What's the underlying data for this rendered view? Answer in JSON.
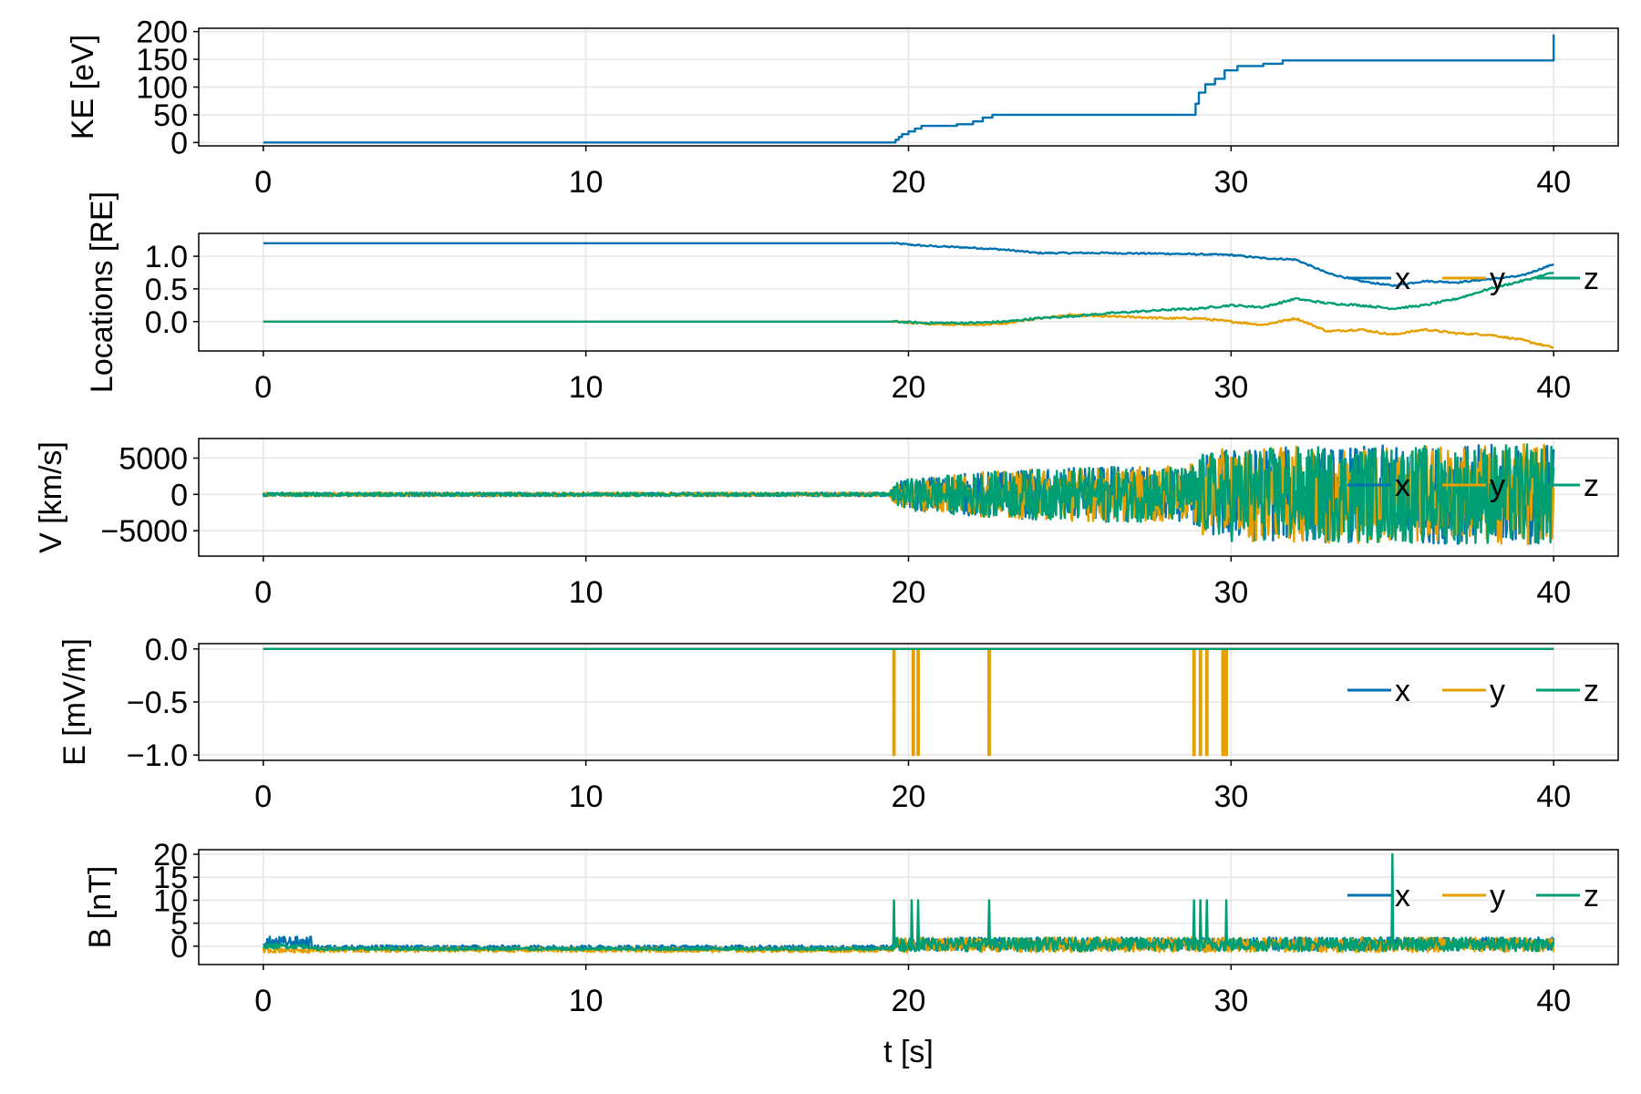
{
  "colors": {
    "x": "#0072b2",
    "y": "#e69f00",
    "z": "#009e73",
    "grid": "#e6e6e6",
    "frame": "#000000"
  },
  "chart_data": [
    {
      "type": "line",
      "ylabel": "KE [eV]",
      "xlabel": "",
      "xlim": [
        -2,
        42
      ],
      "ylim": [
        -6,
        206
      ],
      "xticks": [
        0,
        10,
        20,
        30,
        40
      ],
      "yticks": [
        0,
        50,
        100,
        150,
        200
      ],
      "ytick_labels": [
        "0",
        "50",
        "100",
        "150",
        "200"
      ],
      "grid": true,
      "legend": null,
      "series": [
        {
          "color": "#0072b2",
          "step": true,
          "x": [
            0,
            19.5,
            19.6,
            19.7,
            19.8,
            20.0,
            20.2,
            20.4,
            21.5,
            22.0,
            22.3,
            22.6,
            28.8,
            28.9,
            29.0,
            29.2,
            29.5,
            29.8,
            30.2,
            31.0,
            31.6,
            40.0,
            40.0
          ],
          "y": [
            0,
            0,
            5,
            10,
            15,
            20,
            25,
            30,
            33,
            38,
            45,
            50,
            50,
            70,
            90,
            105,
            115,
            130,
            138,
            142,
            148,
            148,
            195
          ]
        }
      ]
    },
    {
      "type": "line",
      "ylabel": "Locations [RE]",
      "xlabel": "",
      "xlim": [
        -2,
        42
      ],
      "ylim": [
        -0.45,
        1.35
      ],
      "xticks": [
        0,
        10,
        20,
        30,
        40
      ],
      "yticks": [
        0,
        0.5,
        1.0
      ],
      "ytick_labels": [
        "0.0",
        "0.5",
        "1.0"
      ],
      "grid": true,
      "legend": "right",
      "series": [
        {
          "name": "x",
          "color": "#0072b2",
          "noise": 0.012,
          "x": [
            0,
            19.5,
            20.5,
            22,
            23,
            24,
            26,
            28,
            30,
            31,
            32,
            33,
            34,
            35,
            36,
            37,
            38,
            39,
            40
          ],
          "y": [
            1.2,
            1.2,
            1.16,
            1.13,
            1.1,
            1.05,
            1.05,
            1.04,
            1.02,
            0.97,
            0.95,
            0.74,
            0.62,
            0.55,
            0.62,
            0.6,
            0.65,
            0.7,
            0.88
          ]
        },
        {
          "name": "y",
          "color": "#e69f00",
          "noise": 0.015,
          "x": [
            0,
            19.5,
            20.5,
            22,
            23,
            24,
            25,
            26,
            27,
            28,
            29,
            30,
            31,
            32,
            33,
            34,
            35,
            36,
            37,
            38,
            39,
            40
          ],
          "y": [
            0,
            0,
            -0.03,
            -0.05,
            -0.03,
            0.05,
            0.1,
            0.08,
            0.07,
            0.05,
            0.05,
            0.0,
            -0.05,
            0.05,
            -0.15,
            -0.12,
            -0.2,
            -0.12,
            -0.18,
            -0.2,
            -0.28,
            -0.4
          ]
        },
        {
          "name": "z",
          "color": "#009e73",
          "noise": 0.015,
          "x": [
            0,
            19.5,
            20.5,
            22,
            23,
            24,
            25,
            26,
            28,
            29,
            30,
            31,
            32,
            33,
            34,
            35,
            36,
            37,
            38,
            39,
            40
          ],
          "y": [
            0,
            0,
            -0.02,
            -0.02,
            -0.0,
            0.05,
            0.08,
            0.12,
            0.18,
            0.2,
            0.25,
            0.22,
            0.35,
            0.28,
            0.25,
            0.2,
            0.25,
            0.35,
            0.5,
            0.62,
            0.75
          ]
        }
      ]
    },
    {
      "type": "line",
      "ylabel": "V [km/s]",
      "xlabel": "",
      "xlim": [
        -2,
        42
      ],
      "ylim": [
        -8500,
        7700
      ],
      "xticks": [
        0,
        10,
        20,
        30,
        40
      ],
      "yticks": [
        -5000,
        0,
        5000
      ],
      "ytick_labels": [
        "−5000",
        "0",
        "5000"
      ],
      "grid": true,
      "legend": "right",
      "amplitude_envelope": {
        "x": [
          0,
          19.4,
          19.6,
          20.0,
          22.0,
          24.0,
          26.0,
          28.7,
          29.0,
          30.0,
          40.0
        ],
        "a": [
          250,
          250,
          1500,
          2200,
          3000,
          3500,
          3800,
          3900,
          5500,
          6500,
          7000
        ]
      },
      "series": [
        {
          "name": "x",
          "color": "#0072b2"
        },
        {
          "name": "y",
          "color": "#e69f00"
        },
        {
          "name": "z",
          "color": "#009e73"
        }
      ]
    },
    {
      "type": "line",
      "ylabel": "E [mV/m]",
      "xlabel": "",
      "xlim": [
        -2,
        42
      ],
      "ylim": [
        -1.05,
        0.05
      ],
      "xticks": [
        0,
        10,
        20,
        30,
        40
      ],
      "yticks": [
        -1.0,
        -0.5,
        0.0
      ],
      "ytick_labels": [
        "−1.0",
        "−0.5",
        "0.0"
      ],
      "grid": true,
      "legend": "right",
      "series": [
        {
          "name": "x",
          "color": "#0072b2",
          "x": [
            0,
            40
          ],
          "y": [
            0,
            0
          ]
        },
        {
          "name": "y",
          "color": "#e69f00",
          "x": [
            0,
            40
          ],
          "y": [
            0,
            0
          ],
          "spikes": [
            19.55,
            20.15,
            20.3,
            22.5,
            28.85,
            29.05,
            29.25,
            29.75,
            29.85
          ],
          "spike_value": -1.0
        },
        {
          "name": "z",
          "color": "#009e73",
          "x": [
            0,
            40
          ],
          "y": [
            0,
            0
          ]
        }
      ]
    },
    {
      "type": "line",
      "ylabel": "B [nT]",
      "xlabel": "t [s]",
      "xlim": [
        -2,
        42
      ],
      "ylim": [
        -4,
        21
      ],
      "xticks": [
        0,
        10,
        20,
        30,
        40
      ],
      "yticks": [
        0,
        5,
        10,
        15,
        20
      ],
      "ytick_labels": [
        "0",
        "5",
        "10",
        "15",
        "20"
      ],
      "grid": true,
      "legend": "right",
      "series": [
        {
          "name": "x",
          "color": "#0072b2",
          "segments": [
            [
              0,
              1.5,
              0.8,
              1.3
            ],
            [
              1.5,
              19.5,
              -0.3,
              0.5
            ],
            [
              19.5,
              40,
              0.5,
              1.4
            ]
          ]
        },
        {
          "name": "y",
          "color": "#e69f00",
          "segments": [
            [
              0,
              1.5,
              -0.8,
              0.6
            ],
            [
              1.5,
              19.5,
              -0.8,
              0.5
            ],
            [
              19.5,
              40,
              0.3,
              1.6
            ]
          ]
        },
        {
          "name": "z",
          "color": "#009e73",
          "segments": [
            [
              0,
              1.5,
              0.0,
              0.5
            ],
            [
              1.5,
              19.5,
              -0.6,
              0.3
            ],
            [
              19.5,
              40,
              0.4,
              1.5
            ]
          ],
          "spikes": [
            [
              19.55,
              10
            ],
            [
              20.1,
              10
            ],
            [
              20.3,
              10
            ],
            [
              22.5,
              10
            ],
            [
              28.85,
              10
            ],
            [
              29.05,
              10
            ],
            [
              29.25,
              10
            ],
            [
              29.85,
              10
            ],
            [
              35.0,
              20
            ]
          ]
        }
      ]
    }
  ]
}
